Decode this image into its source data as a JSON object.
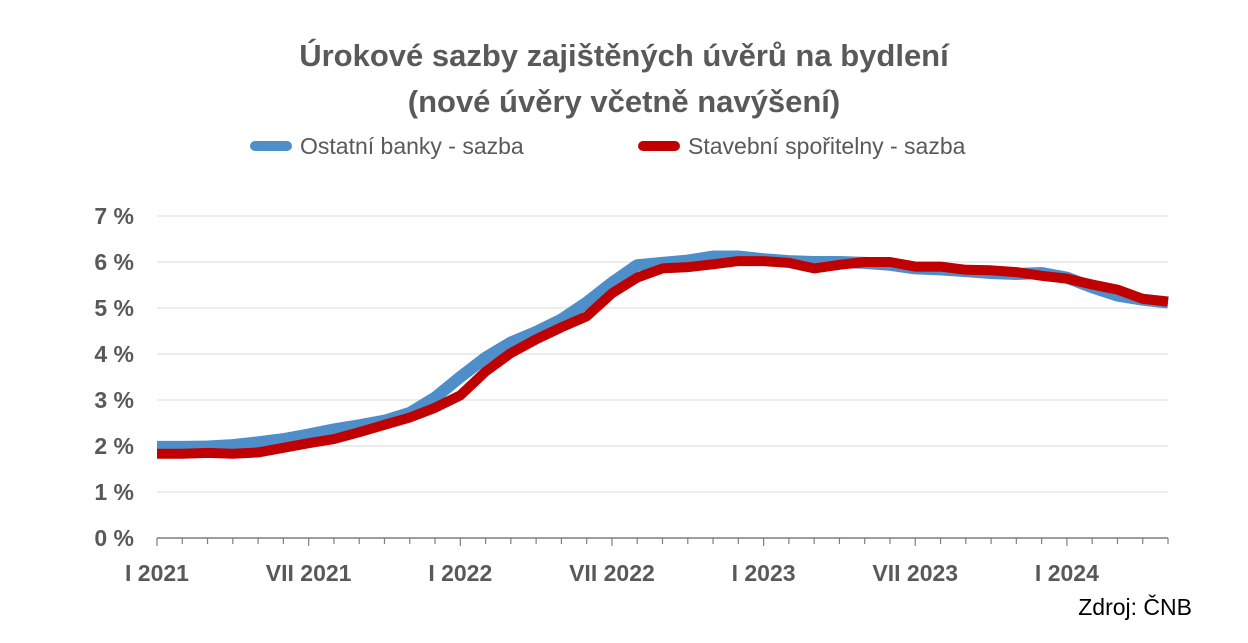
{
  "chart_data": {
    "type": "line",
    "title": "Úrokové sazby zajištěných úvěrů na bydlení",
    "subtitle": "(nové úvěry včetně navýšení)",
    "xlabel": "",
    "ylabel": "",
    "ylim": [
      0,
      7
    ],
    "y_ticks": [
      "0 %",
      "1 %",
      "2 %",
      "3 %",
      "4 %",
      "5 %",
      "6 %",
      "7 %"
    ],
    "x_tick_labels": [
      "I 2021",
      "VII 2021",
      "I 2022",
      "VII 2022",
      "I 2023",
      "VII 2023",
      "I 2024"
    ],
    "x": [
      "2021-01",
      "2021-02",
      "2021-03",
      "2021-04",
      "2021-05",
      "2021-06",
      "2021-07",
      "2021-08",
      "2021-09",
      "2021-10",
      "2021-11",
      "2021-12",
      "2022-01",
      "2022-02",
      "2022-03",
      "2022-04",
      "2022-05",
      "2022-06",
      "2022-07",
      "2022-08",
      "2022-09",
      "2022-10",
      "2022-11",
      "2022-12",
      "2023-01",
      "2023-02",
      "2023-03",
      "2023-04",
      "2023-05",
      "2023-06",
      "2023-07",
      "2023-08",
      "2023-09",
      "2023-10",
      "2023-11",
      "2023-12",
      "2024-01",
      "2024-02",
      "2024-03",
      "2024-04",
      "2024-05"
    ],
    "grid": true,
    "legend_position": "top",
    "series": [
      {
        "name": "Ostatní banky - sazba",
        "color": "#4f8fc9",
        "values": [
          1.98,
          1.98,
          1.99,
          2.02,
          2.08,
          2.15,
          2.25,
          2.36,
          2.45,
          2.55,
          2.72,
          3.05,
          3.5,
          3.92,
          4.25,
          4.48,
          4.75,
          5.12,
          5.55,
          5.93,
          5.98,
          6.03,
          6.12,
          6.12,
          6.06,
          6.02,
          6.0,
          6.0,
          5.98,
          5.94,
          5.86,
          5.84,
          5.8,
          5.76,
          5.74,
          5.76,
          5.66,
          5.45,
          5.27,
          5.18,
          5.12
        ]
      },
      {
        "name": "Stavební spořitelny - sazba",
        "color": "#c00000",
        "values": [
          1.83,
          1.83,
          1.85,
          1.83,
          1.86,
          1.96,
          2.06,
          2.15,
          2.3,
          2.46,
          2.62,
          2.83,
          3.1,
          3.62,
          4.02,
          4.32,
          4.58,
          4.82,
          5.32,
          5.66,
          5.86,
          5.89,
          5.95,
          6.02,
          6.02,
          5.98,
          5.86,
          5.94,
          6.0,
          6.0,
          5.9,
          5.9,
          5.83,
          5.82,
          5.78,
          5.7,
          5.64,
          5.51,
          5.4,
          5.2,
          5.14
        ]
      }
    ]
  },
  "source": "Zdroj: ČNB"
}
